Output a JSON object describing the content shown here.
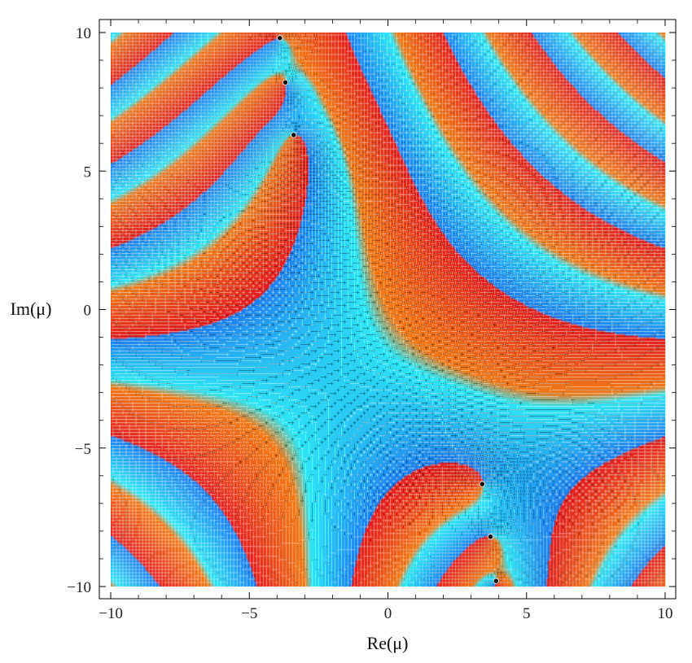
{
  "chart_data": {
    "type": "heatmap",
    "subtype": "complex domain coloring with contour lines",
    "title": "",
    "xlabel": "Re(μ)",
    "ylabel": "Im(μ)",
    "xlim": [
      -10,
      10
    ],
    "ylim": [
      -10,
      10
    ],
    "xticks": [
      -10,
      -5,
      0,
      5,
      10
    ],
    "yticks": [
      -10,
      -5,
      0,
      5,
      10
    ],
    "xtick_labels": [
      "−10",
      "−5",
      "0",
      "5",
      "10"
    ],
    "ytick_labels": [
      "−10",
      "−5",
      "0",
      "5",
      "10"
    ],
    "grid": false,
    "legend": "none",
    "colormap": [
      "#1e7ef0",
      "#2fe6f5",
      "#f07a1a",
      "#e21e1e"
    ],
    "contour_colors": {
      "dark": "#000000",
      "light": "#ffffff"
    },
    "marked_points": [
      {
        "x": -3.9,
        "y": 9.8
      },
      {
        "x": -3.7,
        "y": 8.2
      },
      {
        "x": -3.4,
        "y": 6.3
      },
      {
        "x": 3.4,
        "y": -6.3
      },
      {
        "x": 3.7,
        "y": -8.2
      },
      {
        "x": 3.9,
        "y": -9.8
      }
    ]
  }
}
